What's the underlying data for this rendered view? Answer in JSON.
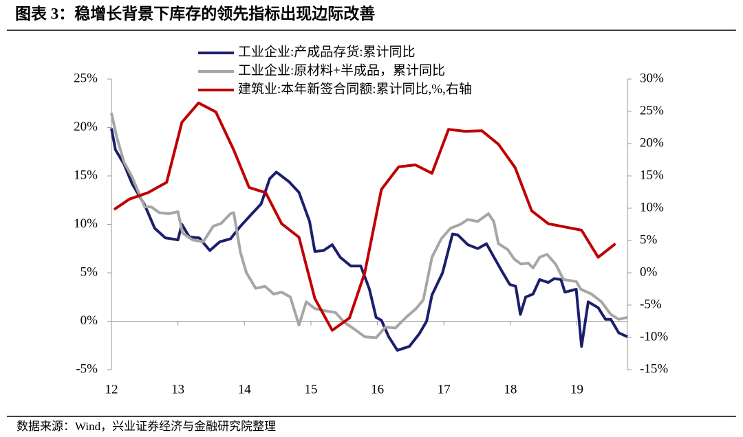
{
  "chart_data": {
    "type": "line",
    "title": "图表 3：稳增长背景下库存的领先指标出现边际改善",
    "source": "数据来源：Wind，兴业证券经济与金融研究院整理",
    "xlim": [
      12,
      19.76
    ],
    "xticks": [
      12,
      13,
      14,
      15,
      16,
      17,
      18,
      19
    ],
    "ylim": [
      -5,
      25
    ],
    "yticks": [
      {
        "value": -5,
        "label": "-5%"
      },
      {
        "value": 0,
        "label": "0%"
      },
      {
        "value": 5,
        "label": "5%"
      },
      {
        "value": 10,
        "label": "10%"
      },
      {
        "value": 15,
        "label": "15%"
      },
      {
        "value": 20,
        "label": "20%"
      },
      {
        "value": 25,
        "label": "25%"
      }
    ],
    "y2lim": [
      -15,
      30
    ],
    "y2ticks": [
      {
        "value": -15,
        "label": "-15%"
      },
      {
        "value": -10,
        "label": "-10%"
      },
      {
        "value": -5,
        "label": "-5%"
      },
      {
        "value": 0,
        "label": "0%"
      },
      {
        "value": 5,
        "label": "5%"
      },
      {
        "value": 10,
        "label": "10%"
      },
      {
        "value": 15,
        "label": "15%"
      },
      {
        "value": 20,
        "label": "20%"
      },
      {
        "value": 25,
        "label": "25%"
      },
      {
        "value": 30,
        "label": "30%"
      }
    ],
    "series": [
      {
        "name": "工业企业:产成品存货:累计同比",
        "color": "#1b1f6b",
        "x": [
          12.0,
          12.06,
          12.19,
          12.31,
          12.5,
          12.65,
          12.81,
          13.0,
          13.06,
          13.17,
          13.32,
          13.48,
          13.63,
          13.79,
          13.94,
          14.1,
          14.25,
          14.38,
          14.48,
          14.67,
          14.82,
          14.98,
          15.06,
          15.19,
          15.32,
          15.44,
          15.6,
          15.75,
          15.88,
          15.98,
          16.06,
          16.17,
          16.3,
          16.48,
          16.63,
          16.74,
          16.82,
          16.98,
          17.13,
          17.21,
          17.36,
          17.51,
          17.64,
          17.77,
          17.87,
          17.99,
          18.08,
          18.15,
          18.23,
          18.34,
          18.44,
          18.57,
          18.66,
          18.76,
          18.82,
          18.99,
          19.07,
          19.17,
          19.32,
          19.43,
          19.51,
          19.63,
          19.76
        ],
        "values": [
          19.9,
          17.7,
          16.2,
          14.2,
          12.0,
          9.6,
          8.6,
          8.4,
          10.0,
          8.7,
          8.6,
          7.3,
          8.2,
          8.5,
          9.8,
          11.0,
          12.1,
          14.7,
          15.4,
          14.4,
          13.3,
          10.3,
          7.2,
          7.3,
          7.9,
          6.6,
          5.7,
          5.7,
          3.3,
          0.4,
          0.1,
          -1.6,
          -3.0,
          -2.6,
          -1.3,
          0.0,
          2.7,
          5.0,
          9.0,
          8.9,
          7.9,
          7.5,
          8.0,
          6.4,
          5.2,
          3.8,
          3.6,
          0.7,
          2.5,
          2.8,
          4.3,
          4.0,
          4.4,
          4.3,
          3.0,
          3.3,
          -2.6,
          2.0,
          1.4,
          0.2,
          0.2,
          -1.2,
          -1.6
        ]
      },
      {
        "name": "工业企业:原材料+半成品，累计同比",
        "color": "#a6a6a6",
        "x": [
          12.0,
          12.08,
          12.19,
          12.31,
          12.5,
          12.6,
          12.72,
          12.86,
          13.0,
          13.07,
          13.22,
          13.38,
          13.53,
          13.65,
          13.79,
          13.84,
          13.94,
          14.03,
          14.17,
          14.31,
          14.44,
          14.56,
          14.69,
          14.82,
          14.93,
          15.06,
          15.19,
          15.37,
          15.5,
          15.65,
          15.81,
          15.98,
          16.12,
          16.27,
          16.43,
          16.58,
          16.69,
          16.82,
          16.96,
          17.1,
          17.25,
          17.36,
          17.51,
          17.67,
          17.75,
          17.82,
          17.96,
          18.06,
          18.16,
          18.27,
          18.34,
          18.44,
          18.55,
          18.68,
          18.8,
          18.99,
          19.06,
          19.22,
          19.37,
          19.51,
          19.63,
          19.76
        ],
        "values": [
          21.5,
          19.0,
          16.4,
          14.9,
          11.8,
          11.8,
          11.2,
          11.1,
          11.3,
          9.1,
          8.4,
          8.2,
          9.8,
          10.1,
          11.1,
          11.2,
          7.1,
          5.0,
          3.4,
          3.6,
          2.8,
          3.0,
          2.5,
          -0.4,
          2.0,
          1.3,
          1.1,
          0.9,
          -0.1,
          -0.8,
          -1.6,
          -1.7,
          -0.6,
          -0.7,
          0.4,
          1.3,
          2.2,
          6.6,
          8.5,
          9.6,
          10.0,
          10.5,
          10.3,
          11.1,
          10.3,
          8.0,
          7.4,
          6.4,
          5.9,
          6.0,
          5.5,
          6.6,
          6.9,
          5.9,
          4.3,
          4.1,
          3.3,
          2.8,
          2.0,
          0.7,
          0.2,
          0.4
        ]
      },
      {
        "name": "建筑业:本年新签合同额:累计同比,%,右轴",
        "color": "#c00000",
        "axis": "y2",
        "x": [
          12.04,
          12.27,
          12.55,
          12.83,
          13.06,
          13.31,
          13.57,
          13.84,
          14.07,
          14.32,
          14.56,
          14.82,
          15.06,
          15.32,
          15.58,
          15.81,
          16.06,
          16.32,
          16.57,
          16.82,
          17.07,
          17.32,
          17.57,
          17.82,
          18.07,
          18.32,
          18.57,
          18.82,
          19.07,
          19.32,
          19.58
        ],
        "values": [
          9.8,
          11.4,
          12.4,
          14.0,
          23.3,
          26.3,
          24.9,
          19.0,
          13.2,
          12.4,
          7.6,
          5.5,
          -4.0,
          -8.9,
          -7.0,
          0.0,
          12.9,
          16.4,
          16.7,
          15.4,
          22.2,
          21.9,
          22.0,
          19.9,
          16.3,
          9.6,
          7.6,
          7.1,
          6.6,
          2.4,
          4.5
        ]
      }
    ]
  }
}
